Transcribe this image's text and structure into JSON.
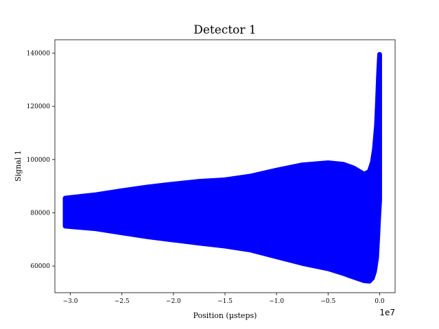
{
  "chart_data": {
    "type": "scatter",
    "title": "Detector 1",
    "xlabel": "Position (μsteps)",
    "ylabel": "Signal 1",
    "x_offset_label": "1e7",
    "x_scale": 10000000,
    "xlim": [
      -3.15,
      0.15
    ],
    "ylim": [
      50000,
      145000
    ],
    "x_ticks": [
      -3.0,
      -2.5,
      -2.0,
      -1.5,
      -1.0,
      -0.5,
      0.0
    ],
    "x_tick_labels": [
      "−3.0",
      "−2.5",
      "−2.0",
      "−1.5",
      "−1.0",
      "−0.5",
      "0.0"
    ],
    "y_ticks": [
      60000,
      80000,
      100000,
      120000,
      140000
    ],
    "y_tick_labels": [
      "60000",
      "80000",
      "100000",
      "120000",
      "140000"
    ],
    "grid": false,
    "series": [
      {
        "color": "#0000ff",
        "marker": "circle",
        "envelope_x": [
          -3.05,
          -2.75,
          -2.5,
          -2.25,
          -2.0,
          -1.75,
          -1.5,
          -1.25,
          -1.0,
          -0.75,
          -0.5,
          -0.35,
          -0.25,
          -0.15,
          -0.1,
          -0.07,
          -0.05,
          -0.03,
          -0.02,
          -0.01,
          0.0
        ],
        "upper": [
          85500,
          86800,
          88300,
          89700,
          90800,
          91800,
          92400,
          93800,
          96000,
          98000,
          98800,
          98200,
          96800,
          94500,
          95500,
          99000,
          104000,
          113000,
          122000,
          132000,
          139500
        ],
        "lower": [
          75000,
          74000,
          72500,
          71000,
          69800,
          68600,
          67500,
          66000,
          63500,
          61000,
          59000,
          57200,
          55800,
          54500,
          54300,
          55500,
          58000,
          63000,
          70000,
          78000,
          85000
        ]
      }
    ]
  }
}
